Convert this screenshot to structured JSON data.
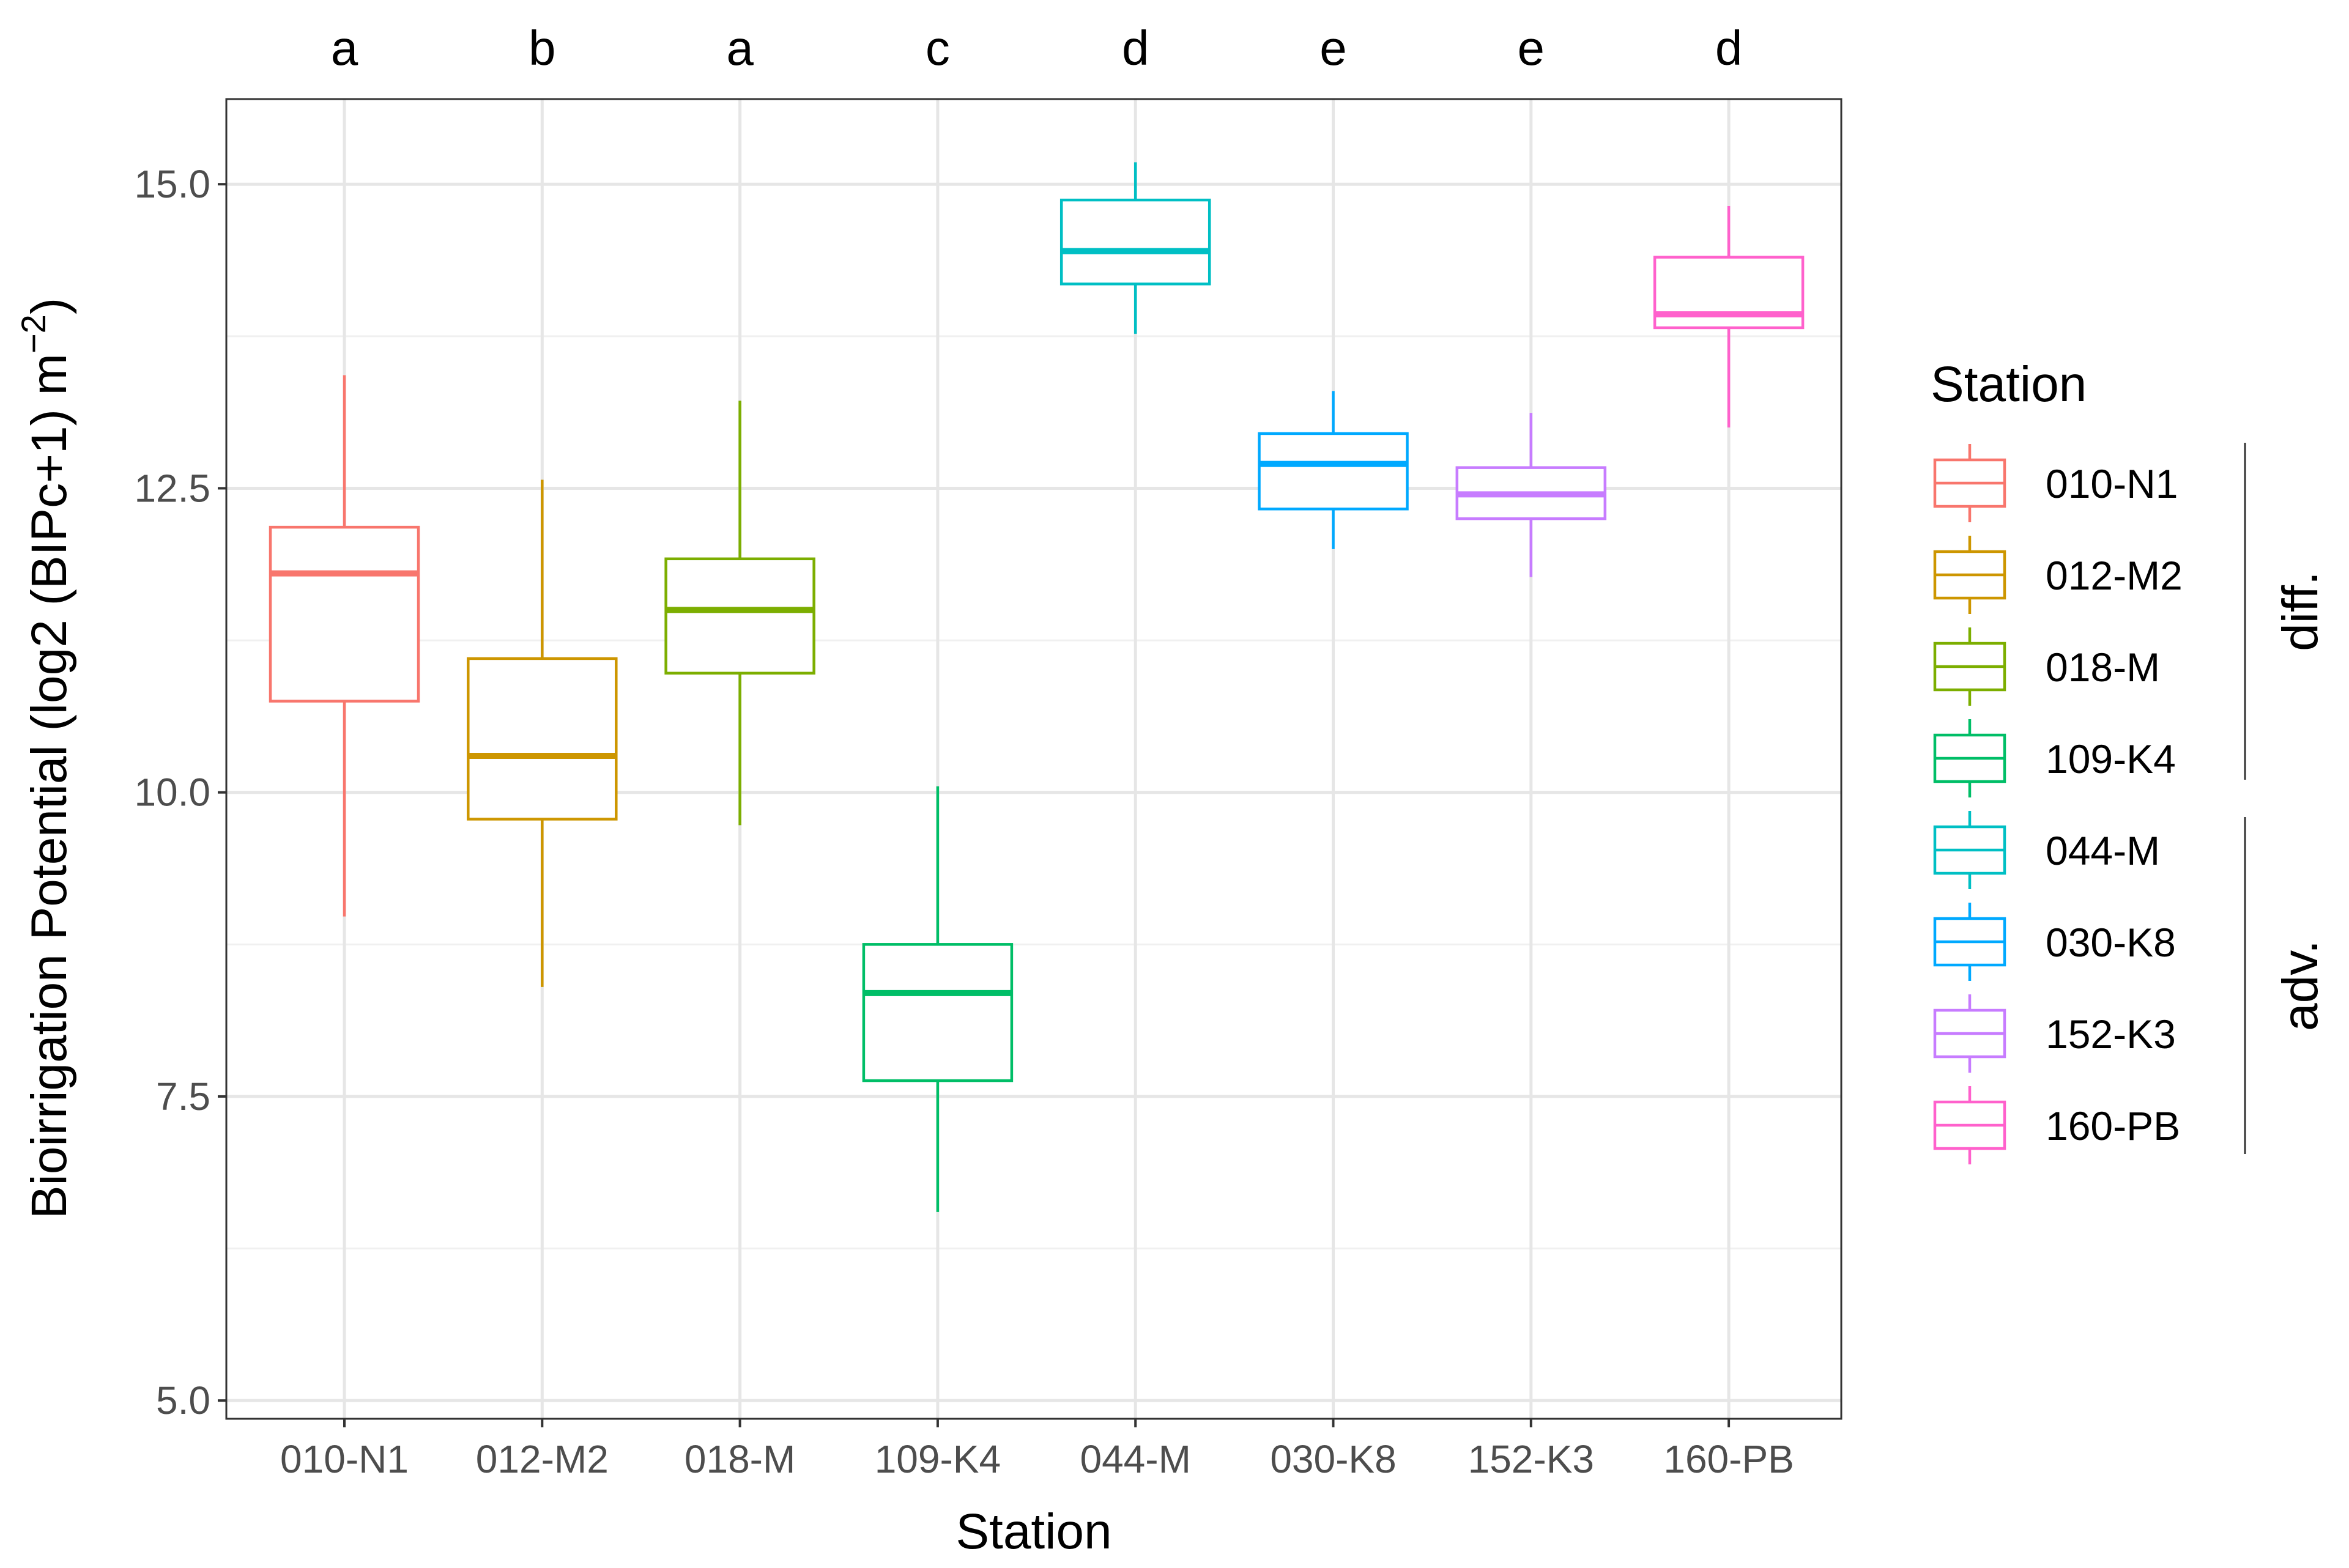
{
  "chart_data": {
    "type": "boxplot",
    "xlabel": "Station",
    "ylabel_main": "Bioirrigation Potential (log2 (BIPc+1)  m",
    "ylabel_sup": "−2",
    "ylabel_close": ")",
    "ylim": [
      4.85,
      15.7
    ],
    "yticks": [
      5.0,
      7.5,
      10.0,
      12.5,
      15.0
    ],
    "ytick_labels": [
      "5.0",
      "7.5",
      "10.0",
      "12.5",
      "15.0"
    ],
    "grid": true,
    "legend_position": "right",
    "legend_title": "Station",
    "categories": [
      "010-N1",
      "012-M2",
      "018-M",
      "109-K4",
      "044-M",
      "030-K8",
      "152-K3",
      "160-PB"
    ],
    "group_letters": [
      "a",
      "b",
      "a",
      "c",
      "d",
      "e",
      "e",
      "d"
    ],
    "series": [
      {
        "name": "010-N1",
        "color": "#F8766D",
        "whisker_low": 8.98,
        "q1": 10.75,
        "median": 11.8,
        "q3": 12.18,
        "whisker_high": 13.43
      },
      {
        "name": "012-M2",
        "color": "#CD9600",
        "whisker_low": 8.4,
        "q1": 9.78,
        "median": 10.3,
        "q3": 11.1,
        "whisker_high": 12.57
      },
      {
        "name": "018-M",
        "color": "#7CAE00",
        "whisker_low": 9.73,
        "q1": 10.98,
        "median": 11.5,
        "q3": 11.92,
        "whisker_high": 13.22
      },
      {
        "name": "109-K4",
        "color": "#00BE67",
        "whisker_low": 6.55,
        "q1": 7.63,
        "median": 8.35,
        "q3": 8.75,
        "whisker_high": 10.05
      },
      {
        "name": "044-M",
        "color": "#00BFC4",
        "whisker_low": 13.77,
        "q1": 14.18,
        "median": 14.45,
        "q3": 14.87,
        "whisker_high": 15.18
      },
      {
        "name": "030-K8",
        "color": "#00A9FF",
        "whisker_low": 12.0,
        "q1": 12.33,
        "median": 12.7,
        "q3": 12.95,
        "whisker_high": 13.3
      },
      {
        "name": "152-K3",
        "color": "#C77CFF",
        "whisker_low": 11.77,
        "q1": 12.25,
        "median": 12.45,
        "q3": 12.67,
        "whisker_high": 13.12
      },
      {
        "name": "160-PB",
        "color": "#FF61CC",
        "whisker_low": 13.0,
        "q1": 13.82,
        "median": 13.93,
        "q3": 14.4,
        "whisker_high": 14.82
      }
    ],
    "legend_groups": [
      {
        "label": "diff.",
        "members": [
          "010-N1",
          "012-M2",
          "018-M",
          "109-K4"
        ]
      },
      {
        "label": "adv.",
        "members": [
          "044-M",
          "030-K8",
          "152-K3",
          "160-PB"
        ]
      }
    ]
  }
}
